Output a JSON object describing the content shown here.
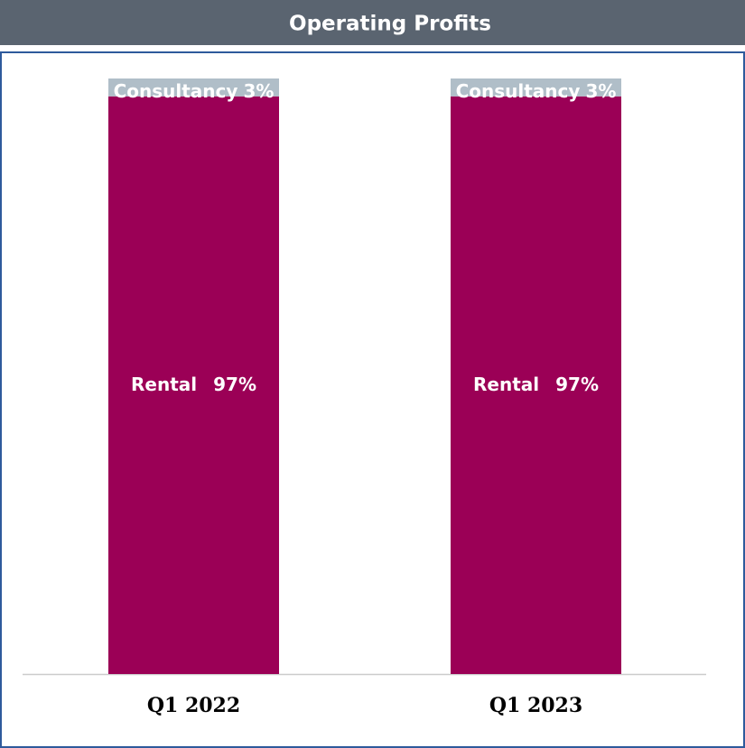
{
  "chart_data": {
    "type": "stacked_bar",
    "title": "Operating Profits",
    "categories": [
      "Q1 2022",
      "Q1 2023"
    ],
    "series": [
      {
        "name": "Rental",
        "color": "#9b0056",
        "values": [
          97,
          97
        ],
        "value_labels": [
          "97%",
          "97%"
        ]
      },
      {
        "name": "Consultancy",
        "color": "#b0bec8",
        "values": [
          3,
          3
        ],
        "value_labels": [
          "3%",
          "3%"
        ]
      }
    ]
  }
}
